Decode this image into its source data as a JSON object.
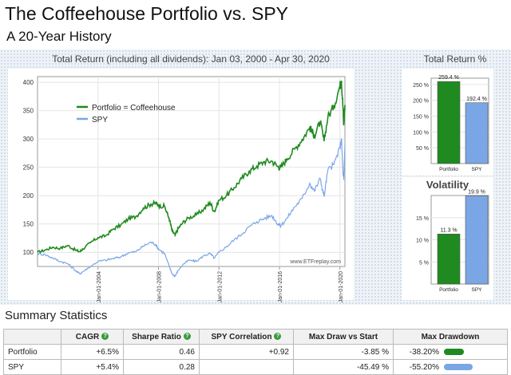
{
  "header": {
    "title": "The Coffeehouse Portfolio vs. SPY",
    "subtitle": "A 20-Year History"
  },
  "colors": {
    "portfolio": "#1f8a1f",
    "spy": "#7aa6e6",
    "help_icon": "#3a9a3a"
  },
  "chart_data": [
    {
      "type": "line",
      "title": "Total Return (including all dividends): Jan 03, 2000 - Apr 30, 2020",
      "watermark": "www.ETFreplay.com",
      "ylim": [
        75,
        410
      ],
      "yticks": [
        "100",
        "150",
        "200",
        "250",
        "300",
        "350",
        "400"
      ],
      "xticks": [
        "Jan-01-2004",
        "Jan-01-2008",
        "Jan-01-2012",
        "Jan-01-2016",
        "Jan-01-2020"
      ],
      "legend_position": "top-left",
      "grid": true,
      "series": [
        {
          "name": "Portfolio = Coffeehouse",
          "x": [
            2000.0,
            2000.5,
            2001.0,
            2001.5,
            2002.0,
            2002.5,
            2002.8,
            2003.0,
            2003.5,
            2004.0,
            2004.5,
            2005.0,
            2005.5,
            2006.0,
            2006.5,
            2007.0,
            2007.5,
            2007.8,
            2008.0,
            2008.4,
            2008.7,
            2008.9,
            2009.1,
            2009.3,
            2009.6,
            2010.0,
            2010.5,
            2011.0,
            2011.4,
            2011.7,
            2012.0,
            2012.5,
            2013.0,
            2013.5,
            2014.0,
            2014.5,
            2015.0,
            2015.5,
            2015.9,
            2016.1,
            2016.5,
            2017.0,
            2017.5,
            2018.0,
            2018.3,
            2018.7,
            2018.95,
            2019.2,
            2019.6,
            2020.0,
            2020.1,
            2020.2,
            2020.25,
            2020.33
          ],
          "y": [
            100,
            104,
            109,
            107,
            112,
            104,
            101,
            106,
            117,
            126,
            129,
            141,
            148,
            159,
            163,
            178,
            185,
            187,
            183,
            181,
            160,
            138,
            130,
            142,
            152,
            161,
            166,
            176,
            188,
            172,
            192,
            200,
            214,
            230,
            243,
            252,
            260,
            261,
            251,
            250,
            265,
            282,
            299,
            320,
            306,
            330,
            296,
            338,
            358,
            394,
            403,
            356,
            325,
            360
          ]
        },
        {
          "name": "SPY",
          "x": [
            2000.0,
            2000.5,
            2001.0,
            2001.5,
            2002.0,
            2002.5,
            2002.8,
            2003.0,
            2003.5,
            2004.0,
            2004.5,
            2005.0,
            2005.5,
            2006.0,
            2006.5,
            2007.0,
            2007.5,
            2007.8,
            2008.0,
            2008.4,
            2008.7,
            2008.9,
            2009.1,
            2009.3,
            2009.6,
            2010.0,
            2010.5,
            2011.0,
            2011.4,
            2011.7,
            2012.0,
            2012.5,
            2013.0,
            2013.5,
            2014.0,
            2014.5,
            2015.0,
            2015.5,
            2015.9,
            2016.1,
            2016.5,
            2017.0,
            2017.5,
            2018.0,
            2018.3,
            2018.7,
            2018.95,
            2019.2,
            2019.6,
            2020.0,
            2020.1,
            2020.2,
            2020.25,
            2020.33
          ],
          "y": [
            98,
            96,
            90,
            84,
            80,
            68,
            62,
            66,
            75,
            84,
            86,
            89,
            92,
            99,
            101,
            111,
            118,
            114,
            106,
            98,
            76,
            62,
            58,
            68,
            78,
            86,
            84,
            94,
            98,
            90,
            100,
            110,
            122,
            132,
            145,
            154,
            160,
            165,
            150,
            147,
            160,
            180,
            195,
            222,
            208,
            230,
            198,
            245,
            255,
            285,
            300,
            240,
            228,
            290
          ]
        }
      ]
    },
    {
      "type": "bar",
      "title": "Total Return %",
      "categories": [
        "Portfolio",
        "SPY"
      ],
      "values": [
        259.4,
        192.4
      ],
      "data_labels": [
        "259.4 %",
        "192.4 %"
      ],
      "ylim": [
        0,
        270
      ],
      "yticks": [
        "50 %",
        "100 %",
        "150 %",
        "200 %",
        "250 %"
      ]
    },
    {
      "type": "bar",
      "title": "Volatility",
      "categories": [
        "Portfolio",
        "SPY"
      ],
      "values": [
        11.3,
        19.9
      ],
      "data_labels": [
        "11.3 %",
        "19.9 %"
      ],
      "ylim": [
        0,
        20
      ],
      "yticks": [
        "5 %",
        "10 %",
        "15 %"
      ]
    }
  ],
  "summary": {
    "title": "Summary Statistics",
    "help_glyph": "?",
    "columns": [
      "",
      "CAGR",
      "Sharpe Ratio",
      "SPY Correlation",
      "Max Draw vs Start",
      "Max Drawdown"
    ],
    "column_help": [
      false,
      true,
      true,
      true,
      false,
      false
    ],
    "rows": [
      {
        "name": "Portfolio",
        "cagr": "+6.5%",
        "sharpe": "0.46",
        "corr": "+0.92",
        "draw_start": "-3.85 %",
        "max_dd": "-38.20%",
        "max_dd_value": 38.2,
        "dd_color": "#1f8a1f"
      },
      {
        "name": "SPY",
        "cagr": "+5.4%",
        "sharpe": "0.28",
        "corr": "",
        "draw_start": "-45.49 %",
        "max_dd": "-55.20%",
        "max_dd_value": 55.2,
        "dd_color": "#7aa6e6"
      }
    ]
  }
}
